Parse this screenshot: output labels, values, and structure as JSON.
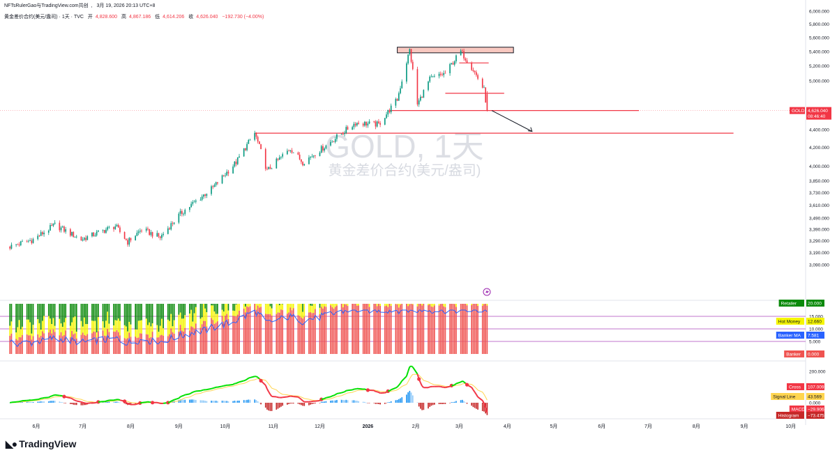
{
  "header": {
    "publisher": "NFTsRulerGao与TradingView.com共创",
    "datetime": "3月 19, 2026 20:13 UTC+8",
    "symbol_desc": "黄金差价合约(美元/盎司) · 1天 · TVC",
    "open_label": "开",
    "open_value": "4,828.600",
    "high_label": "高",
    "high_value": "4,867.186",
    "low_label": "低",
    "low_value": "4,614.206",
    "close_label": "收",
    "close_value": "4,626.040",
    "change": "−192.730 (−4.00%)"
  },
  "watermark": {
    "symbol": "GOLD, 1天",
    "name": "黄金差价合约(美元/盎司)"
  },
  "price_tag": {
    "label": "GOLD",
    "price": "4,626.040",
    "countdown": "08:46:40"
  },
  "brand": "TradingView",
  "colors": {
    "up": "#089981",
    "down": "#f23645",
    "zone_fill": "#f8c8c0",
    "hot_yellow": "#f5f500",
    "retailer_green": "#0b8a0b",
    "banker_red": "#ef5350",
    "banker_ma": "#2962ff",
    "macd_line": "#00e000",
    "signal_line": "#ffd54f",
    "hist_up": "#2196f3",
    "hist_up_light": "#90caf9",
    "hist_down": "#c62828",
    "level_line": "#e91e63",
    "level_line2": "#ab47bc"
  },
  "chart_data": [
    {
      "type": "candlestick",
      "title": "黄金差价合约(美元/盎司) · 1天 · TVC",
      "yscale": "log",
      "y_ticks": [
        3090,
        3190,
        3290,
        3390,
        3490,
        3610,
        3730,
        3850,
        4000,
        4200,
        4400,
        4626.04,
        5000,
        5200,
        5400,
        5600,
        5800,
        6000
      ],
      "y_tick_labels": [
        "3,090.000",
        "3,190.000",
        "3,290.000",
        "3,390.000",
        "3,490.000",
        "3,610.000",
        "3,730.000",
        "3,850.000",
        "4,000.000",
        "4,200.000",
        "4,400.000",
        "",
        "5,000.000",
        "5,200.000",
        "5,400.000",
        "5,600.000",
        "5,800.000",
        "6,000.000"
      ],
      "x_labels": [
        "6月",
        "7月",
        "8月",
        "9月",
        "10月",
        "11月",
        "12月",
        "2026",
        "2月",
        "3月",
        "4月",
        "5月",
        "6月",
        "7月",
        "8月",
        "9月",
        "10月"
      ],
      "anchors": [
        [
          "2025-05-15",
          3240
        ],
        [
          "2025-05-30",
          3300
        ],
        [
          "2025-06-13",
          3430
        ],
        [
          "2025-06-30",
          3300
        ],
        [
          "2025-07-22",
          3420
        ],
        [
          "2025-07-30",
          3280
        ],
        [
          "2025-08-08",
          3390
        ],
        [
          "2025-08-20",
          3320
        ],
        [
          "2025-09-02",
          3530
        ],
        [
          "2025-09-23",
          3780
        ],
        [
          "2025-10-08",
          4040
        ],
        [
          "2025-10-20",
          4360
        ],
        [
          "2025-10-28",
          3950
        ],
        [
          "2025-11-12",
          4190
        ],
        [
          "2025-11-20",
          4040
        ],
        [
          "2025-12-05",
          4220
        ],
        [
          "2025-12-24",
          4480
        ],
        [
          "2026-01-08",
          4460
        ],
        [
          "2026-01-20",
          4760
        ],
        [
          "2026-01-28",
          5420
        ],
        [
          "2026-02-02",
          4700
        ],
        [
          "2026-02-10",
          5020
        ],
        [
          "2026-02-20",
          5100
        ],
        [
          "2026-03-02",
          5400
        ],
        [
          "2026-03-10",
          5150
        ],
        [
          "2026-03-17",
          4880
        ],
        [
          "2026-03-19",
          4626.04
        ]
      ],
      "last_candle": {
        "date": "2026-03-19",
        "open": 4828.6,
        "high": 4867.186,
        "low": 4614.206,
        "close": 4626.04
      },
      "resistance_zone": {
        "from": "2026-01-20",
        "to": "2026-04-05",
        "low": 5380,
        "high": 5460
      },
      "levels": [
        {
          "price": 4626.04,
          "from": "2026-01-15",
          "to": "2026-06-25"
        },
        {
          "price": 4360,
          "from": "2025-10-20",
          "to": "2026-08-25"
        },
        {
          "price": 4840,
          "from": "2026-02-20",
          "to": "2026-03-30"
        },
        {
          "price": 5240,
          "from": "2026-03-01",
          "to": "2026-03-20"
        }
      ],
      "projection_arrow": {
        "from": [
          "2026-03-22",
          4626.04
        ],
        "to": [
          "2026-04-17",
          4380
        ]
      }
    },
    {
      "type": "bar",
      "title": "Retailer / Hot Money / Banker",
      "series": [
        {
          "name": "Retailer",
          "last": "20.000"
        },
        {
          "name": "Hot Money",
          "last": "12.660"
        },
        {
          "name": "Banker MA",
          "last": "7.581"
        },
        {
          "name": "Banker",
          "last": "0.000"
        }
      ],
      "levels": [
        15,
        10,
        5
      ],
      "level_labels": [
        "15.000",
        "10.000",
        "5.000"
      ]
    },
    {
      "type": "line",
      "title": "MACD",
      "y_ticks": [
        200,
        0
      ],
      "y_tick_labels": [
        "200.000",
        "0.000"
      ],
      "series": [
        {
          "name": "Cross",
          "last": "107.009"
        },
        {
          "name": "Signal Line",
          "last": "43.569"
        },
        {
          "name": "MACD",
          "last": "−29.906"
        },
        {
          "name": "Histogram",
          "last": "−73.475"
        }
      ]
    }
  ]
}
